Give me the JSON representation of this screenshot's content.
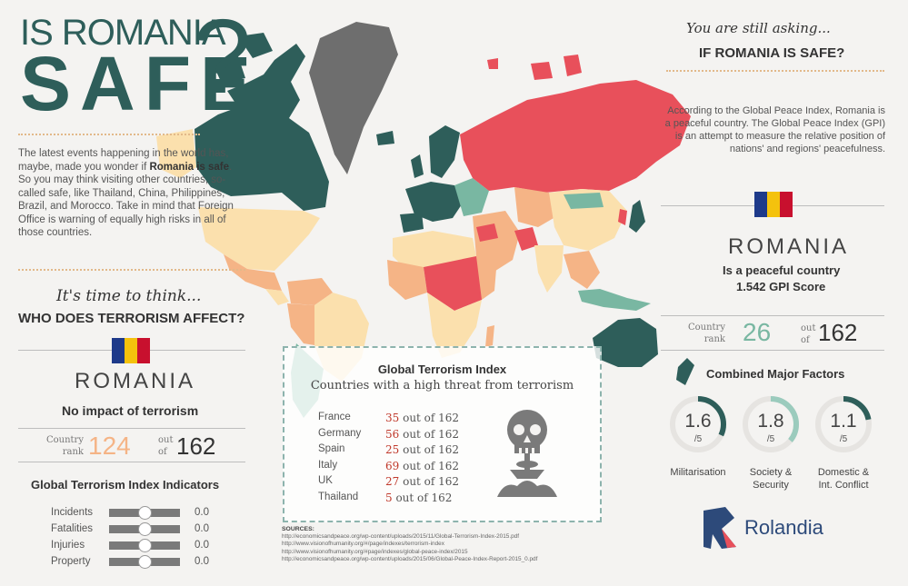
{
  "title": {
    "line1": "IS ROMANIA",
    "line2": "SAFE",
    "mark": "?"
  },
  "intro": {
    "before": "The latest events happening in the world has, maybe, made you wonder if ",
    "bold": "Romania is safe",
    "after": ". So you may think visiting other countries, so-called safe, like Thailand, China, Philippines, Brazil, and Morocco. Take in mind that Foreign Office is warning of equally high risks in all of those countries."
  },
  "terrorism": {
    "script_heading": "It's time to think...",
    "heading": "WHO DOES TERRORISM AFFECT?",
    "country": "ROMANIA",
    "impact": "No impact of terrorism",
    "rank_label_1": "Country",
    "rank_label_2": "rank",
    "rank": "124",
    "out_label_1": "out",
    "out_label_2": "of",
    "total": "162",
    "indicators_title": "Global Terrorism Index Indicators",
    "indicators": [
      {
        "label": "Incidents",
        "value": "0.0",
        "level": 0.5
      },
      {
        "label": "Fatalities",
        "value": "0.0",
        "level": 0.5
      },
      {
        "label": "Injuries",
        "value": "0.0",
        "level": 0.5
      },
      {
        "label": "Property",
        "value": "0.0",
        "level": 0.5
      }
    ]
  },
  "gti_box": {
    "title": "Global Terrorism Index",
    "subtitle": "Countries with a high threat from terrorism",
    "rows": [
      {
        "country": "France",
        "rank": "35",
        "suffix": " out of 162"
      },
      {
        "country": "Germany",
        "rank": "56",
        "suffix": " out of 162"
      },
      {
        "country": "Spain",
        "rank": "25",
        "suffix": " out of 162"
      },
      {
        "country": "Italy",
        "rank": "69",
        "suffix": " out of 162"
      },
      {
        "country": "UK",
        "rank": "27",
        "suffix": " out of 162"
      },
      {
        "country": "Thailand",
        "rank": "5",
        "suffix": " out of 162"
      }
    ]
  },
  "sources": {
    "heading": "SOURCES:",
    "lines": [
      "http://economicsandpeace.org/wp-content/uploads/2015/11/Global-Terrorism-Index-2015.pdf",
      "http://www.visionofhumanity.org/#/page/indexes/terrorism-index",
      "http://www.visionofhumanity.org/#page/indexes/global-peace-index/2015",
      "http://economicsandpeace.org/wp-content/uploads/2015/06/Global-Peace-Index-Report-2015_0.pdf"
    ]
  },
  "peace": {
    "script_heading": "You are still asking...",
    "heading": "IF ROMANIA IS SAFE?",
    "description": "According to the Global Peace Index, Romania is a peaceful country. The Global Peace Index (GPI) is an attempt to measure the relative position of nations' and regions' peacefulness.",
    "country": "ROMANIA",
    "line1": "Is a peaceful country",
    "line2": "1.542 GPI Score",
    "rank_label_1": "Country",
    "rank_label_2": "rank",
    "rank": "26",
    "out_label_1": "out",
    "out_label_2": "of",
    "total": "162",
    "factors_title": "Combined Major Factors",
    "factors": [
      {
        "value": "1.6",
        "denominator": "/5",
        "label_1": "Militarisation",
        "label_2": "",
        "score": 1.6
      },
      {
        "value": "1.8",
        "denominator": "/5",
        "label_1": "Society &",
        "label_2": "Security",
        "score": 1.8
      },
      {
        "value": "1.1",
        "denominator": "/5",
        "label_1": "Domestic &",
        "label_2": "Int. Conflict",
        "score": 1.1
      }
    ]
  },
  "brand": {
    "name": "Rolandia"
  },
  "colors": {
    "teal": "#2e5e5a",
    "accent_orange": "#f5b486",
    "rank_green": "#79b7a2",
    "threat_red": "#c0392b",
    "flag_blue": "#1e3a8a",
    "flag_yellow": "#f4c20d",
    "flag_red": "#c8102e",
    "brand_blue": "#2d4a7a"
  }
}
